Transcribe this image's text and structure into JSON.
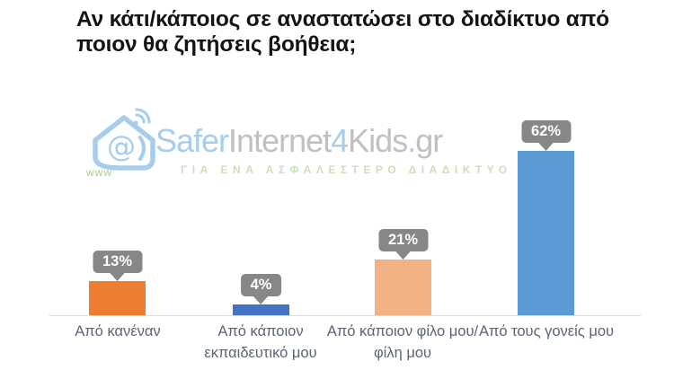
{
  "title": {
    "line1": "Αν κάτι/κάποιος σε αναστατώσει στο διαδίκτυο από",
    "line2": "ποιον θα ζητήσεις βοήθεια;"
  },
  "watermark": {
    "icon": "house-at-wifi-logo",
    "www_label": "www",
    "brand": {
      "safer": "Safer",
      "internet": "Internet",
      "four": "4",
      "kids": "Kids",
      "dot": ".",
      "gr": "gr"
    },
    "tagline": "ΓΙΑ ΕΝΑ ΑΣΦΑΛΕΣΤΕΡΟ ΔΙΑΔΙΚΤΥΟ",
    "colors": {
      "blue": "#A6CDEB",
      "gray": "#C0C0C2",
      "green": "#CBDFBD"
    }
  },
  "chart_data": {
    "type": "bar",
    "title": "Αν κάτι/κάποιος σε αναστατώσει στο διαδίκτυο από ποιον θα ζητήσεις βοήθεια;",
    "categories": [
      "Από κανέναν",
      "Από κάποιον εκπαιδευτικό μου",
      "Από κάποιον φίλο μου/φίλη μου",
      "Από τους γονείς μου"
    ],
    "values": [
      13,
      4,
      21,
      62
    ],
    "value_labels": [
      "13%",
      "4%",
      "21%",
      "62%"
    ],
    "bar_colors": [
      "#ED7D31",
      "#4472C4",
      "#F4B183",
      "#5B9BD5"
    ],
    "xlabel": "",
    "ylabel": "",
    "ylim": [
      0,
      66
    ],
    "grid": false,
    "legend": false,
    "baseline_color": "#DCDCDC",
    "bubble_color": "#878787",
    "bubble_text_color": "#FFFFFF",
    "category_label_color": "#5A6577",
    "title_color": "#141414"
  }
}
